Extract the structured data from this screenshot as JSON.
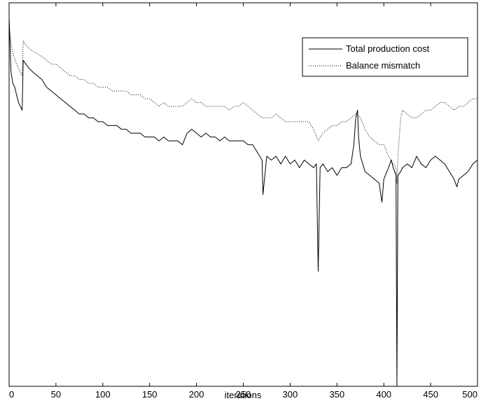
{
  "chart_data": {
    "type": "line",
    "title": "",
    "xlabel": "iterations",
    "ylabel": "",
    "xlim": [
      0,
      500
    ],
    "ylim": [
      0,
      100
    ],
    "xticks": [
      0,
      50,
      100,
      150,
      200,
      250,
      300,
      350,
      400,
      450,
      500
    ],
    "show_y_tick_labels": false,
    "grid": false,
    "legend_position": "top-right",
    "series": [
      {
        "name": "Total production cost",
        "style": "solid",
        "color": "#000000",
        "points": [
          [
            0,
            96
          ],
          [
            2,
            82
          ],
          [
            4,
            79
          ],
          [
            6,
            78
          ],
          [
            8,
            76
          ],
          [
            10,
            74
          ],
          [
            12,
            73
          ],
          [
            14,
            72
          ],
          [
            15,
            85
          ],
          [
            18,
            84
          ],
          [
            21,
            83
          ],
          [
            25,
            82
          ],
          [
            30,
            81
          ],
          [
            35,
            80
          ],
          [
            40,
            78
          ],
          [
            45,
            77
          ],
          [
            50,
            76
          ],
          [
            55,
            75
          ],
          [
            60,
            74
          ],
          [
            65,
            73
          ],
          [
            70,
            72
          ],
          [
            75,
            71
          ],
          [
            80,
            71
          ],
          [
            85,
            70
          ],
          [
            90,
            70
          ],
          [
            95,
            69
          ],
          [
            100,
            69
          ],
          [
            105,
            68
          ],
          [
            110,
            68
          ],
          [
            115,
            68
          ],
          [
            120,
            67
          ],
          [
            125,
            67
          ],
          [
            130,
            66
          ],
          [
            135,
            66
          ],
          [
            140,
            66
          ],
          [
            145,
            65
          ],
          [
            150,
            65
          ],
          [
            155,
            65
          ],
          [
            160,
            64
          ],
          [
            165,
            65
          ],
          [
            170,
            64
          ],
          [
            175,
            64
          ],
          [
            180,
            64
          ],
          [
            185,
            63
          ],
          [
            190,
            66
          ],
          [
            195,
            67
          ],
          [
            200,
            66
          ],
          [
            205,
            65
          ],
          [
            210,
            66
          ],
          [
            215,
            65
          ],
          [
            220,
            65
          ],
          [
            225,
            64
          ],
          [
            230,
            65
          ],
          [
            235,
            64
          ],
          [
            240,
            64
          ],
          [
            245,
            64
          ],
          [
            250,
            64
          ],
          [
            255,
            63
          ],
          [
            260,
            63
          ],
          [
            265,
            61
          ],
          [
            270,
            59
          ],
          [
            271,
            50
          ],
          [
            275,
            60
          ],
          [
            280,
            59
          ],
          [
            285,
            60
          ],
          [
            290,
            58
          ],
          [
            295,
            60
          ],
          [
            300,
            58
          ],
          [
            305,
            59
          ],
          [
            310,
            57
          ],
          [
            315,
            59
          ],
          [
            320,
            58
          ],
          [
            325,
            57
          ],
          [
            328,
            58
          ],
          [
            330,
            30
          ],
          [
            332,
            57
          ],
          [
            335,
            58
          ],
          [
            340,
            56
          ],
          [
            345,
            57
          ],
          [
            350,
            55
          ],
          [
            355,
            57
          ],
          [
            360,
            57
          ],
          [
            365,
            58
          ],
          [
            368,
            63
          ],
          [
            370,
            70
          ],
          [
            372,
            72
          ],
          [
            373,
            65
          ],
          [
            375,
            60
          ],
          [
            380,
            56
          ],
          [
            385,
            55
          ],
          [
            390,
            54
          ],
          [
            395,
            53
          ],
          [
            398,
            48
          ],
          [
            400,
            54
          ],
          [
            405,
            57
          ],
          [
            408,
            59
          ],
          [
            410,
            57
          ],
          [
            413,
            55
          ],
          [
            414,
            0
          ],
          [
            415,
            55
          ],
          [
            418,
            56
          ],
          [
            420,
            57
          ],
          [
            425,
            58
          ],
          [
            430,
            57
          ],
          [
            435,
            60
          ],
          [
            440,
            58
          ],
          [
            445,
            57
          ],
          [
            450,
            59
          ],
          [
            455,
            60
          ],
          [
            460,
            59
          ],
          [
            465,
            58
          ],
          [
            470,
            56
          ],
          [
            475,
            54
          ],
          [
            478,
            52
          ],
          [
            480,
            54
          ],
          [
            485,
            55
          ],
          [
            490,
            56
          ],
          [
            495,
            58
          ],
          [
            500,
            59
          ]
        ]
      },
      {
        "name": "Balance mismatch",
        "style": "dotted",
        "color": "#000000",
        "points": [
          [
            0,
            95
          ],
          [
            1,
            92
          ],
          [
            3,
            88
          ],
          [
            5,
            86
          ],
          [
            8,
            84
          ],
          [
            10,
            83
          ],
          [
            12,
            82
          ],
          [
            14,
            81
          ],
          [
            15,
            90
          ],
          [
            18,
            89
          ],
          [
            22,
            88
          ],
          [
            28,
            87
          ],
          [
            35,
            86
          ],
          [
            40,
            85
          ],
          [
            45,
            84
          ],
          [
            50,
            84
          ],
          [
            55,
            83
          ],
          [
            60,
            82
          ],
          [
            65,
            81
          ],
          [
            70,
            81
          ],
          [
            75,
            80
          ],
          [
            80,
            80
          ],
          [
            85,
            79
          ],
          [
            90,
            79
          ],
          [
            95,
            78
          ],
          [
            100,
            78
          ],
          [
            105,
            78
          ],
          [
            110,
            77
          ],
          [
            115,
            77
          ],
          [
            120,
            77
          ],
          [
            125,
            77
          ],
          [
            130,
            76
          ],
          [
            135,
            76
          ],
          [
            140,
            76
          ],
          [
            145,
            75
          ],
          [
            150,
            75
          ],
          [
            155,
            74
          ],
          [
            160,
            73
          ],
          [
            165,
            74
          ],
          [
            170,
            73
          ],
          [
            175,
            73
          ],
          [
            180,
            73
          ],
          [
            185,
            73
          ],
          [
            190,
            74
          ],
          [
            195,
            75
          ],
          [
            200,
            74
          ],
          [
            205,
            74
          ],
          [
            210,
            73
          ],
          [
            215,
            73
          ],
          [
            220,
            73
          ],
          [
            225,
            73
          ],
          [
            230,
            73
          ],
          [
            235,
            72
          ],
          [
            240,
            73
          ],
          [
            245,
            73
          ],
          [
            250,
            74
          ],
          [
            255,
            73
          ],
          [
            260,
            72
          ],
          [
            265,
            71
          ],
          [
            270,
            70
          ],
          [
            275,
            70
          ],
          [
            280,
            70
          ],
          [
            285,
            71
          ],
          [
            290,
            70
          ],
          [
            295,
            69
          ],
          [
            300,
            69
          ],
          [
            305,
            69
          ],
          [
            310,
            69
          ],
          [
            315,
            69
          ],
          [
            320,
            69
          ],
          [
            325,
            67
          ],
          [
            330,
            64
          ],
          [
            335,
            66
          ],
          [
            340,
            67
          ],
          [
            345,
            68
          ],
          [
            350,
            68
          ],
          [
            355,
            69
          ],
          [
            360,
            69
          ],
          [
            365,
            70
          ],
          [
            370,
            71
          ],
          [
            375,
            70
          ],
          [
            380,
            67
          ],
          [
            385,
            65
          ],
          [
            390,
            64
          ],
          [
            395,
            63
          ],
          [
            400,
            63
          ],
          [
            405,
            60
          ],
          [
            410,
            58
          ],
          [
            413,
            57
          ],
          [
            414,
            53
          ],
          [
            415,
            60
          ],
          [
            418,
            70
          ],
          [
            420,
            72
          ],
          [
            425,
            71
          ],
          [
            430,
            70
          ],
          [
            435,
            70
          ],
          [
            440,
            71
          ],
          [
            445,
            72
          ],
          [
            450,
            72
          ],
          [
            455,
            73
          ],
          [
            460,
            74
          ],
          [
            465,
            74
          ],
          [
            470,
            73
          ],
          [
            475,
            72
          ],
          [
            480,
            73
          ],
          [
            485,
            73
          ],
          [
            490,
            74
          ],
          [
            495,
            75
          ],
          [
            500,
            75
          ]
        ]
      }
    ]
  }
}
